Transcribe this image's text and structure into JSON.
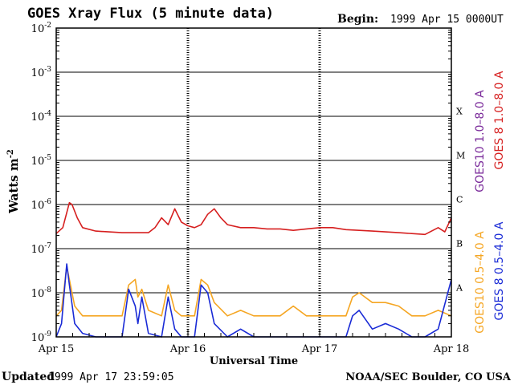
{
  "chart_data": {
    "type": "line",
    "title": "GOES Xray Flux (5 minute data)",
    "begin_label": "Begin:",
    "begin_value": "1999 Apr 15 0000UT",
    "xlabel": "Universal Time",
    "ylabel": "Watts m",
    "ylabel_sup": "-2",
    "y_scale": "log",
    "ylim": [
      1e-09,
      0.01
    ],
    "xlim_days": [
      0,
      3
    ],
    "x_ticks": [
      "Apr 15",
      "Apr 16",
      "Apr 17",
      "Apr 18"
    ],
    "y_ticks": [
      {
        "base": "10",
        "exp": "-9"
      },
      {
        "base": "10",
        "exp": "-8"
      },
      {
        "base": "10",
        "exp": "-7"
      },
      {
        "base": "10",
        "exp": "-6"
      },
      {
        "base": "10",
        "exp": "-5"
      },
      {
        "base": "10",
        "exp": "-4"
      },
      {
        "base": "10",
        "exp": "-3"
      },
      {
        "base": "10",
        "exp": "-2"
      }
    ],
    "flare_classes": [
      "A",
      "B",
      "C",
      "M",
      "X"
    ],
    "legend": [
      {
        "label": "GOES10 1.0–8.0 A",
        "color": "#7a2a9a"
      },
      {
        "label": "GOES 8 1.0–8.0 A",
        "color": "#d61f1f"
      },
      {
        "label": "GOES10 0.5–4.0 A",
        "color": "#f5a623"
      },
      {
        "label": "GOES 8 0.5–4.0 A",
        "color": "#1a2bd6"
      }
    ],
    "series": [
      {
        "name": "GOES 8 1.0–8.0 A",
        "color": "#d61f1f",
        "x": [
          0,
          0.05,
          0.1,
          0.12,
          0.16,
          0.2,
          0.3,
          0.4,
          0.5,
          0.6,
          0.7,
          0.75,
          0.8,
          0.85,
          0.9,
          0.95,
          1.0,
          1.05,
          1.1,
          1.15,
          1.2,
          1.25,
          1.3,
          1.4,
          1.5,
          1.6,
          1.7,
          1.8,
          1.9,
          2.0,
          2.1,
          2.2,
          2.3,
          2.4,
          2.5,
          2.6,
          2.7,
          2.8,
          2.9,
          2.95,
          3.0
        ],
        "values": [
          2.2e-07,
          3e-07,
          1.1e-06,
          1e-06,
          5e-07,
          3e-07,
          2.5e-07,
          2.4e-07,
          2.3e-07,
          2.3e-07,
          2.3e-07,
          3e-07,
          5e-07,
          3.5e-07,
          8e-07,
          4e-07,
          3.3e-07,
          3e-07,
          3.5e-07,
          6e-07,
          8e-07,
          5e-07,
          3.5e-07,
          3e-07,
          3e-07,
          2.8e-07,
          2.8e-07,
          2.6e-07,
          2.8e-07,
          3e-07,
          3e-07,
          2.7e-07,
          2.6e-07,
          2.5e-07,
          2.4e-07,
          2.3e-07,
          2.2e-07,
          2.1e-07,
          3e-07,
          2.4e-07,
          5e-07
        ]
      },
      {
        "name": "GOES10 0.5–4.0 A",
        "color": "#f5a623",
        "x": [
          0,
          0.04,
          0.08,
          0.1,
          0.14,
          0.2,
          0.3,
          0.4,
          0.5,
          0.55,
          0.6,
          0.62,
          0.65,
          0.7,
          0.8,
          0.85,
          0.9,
          0.95,
          1.0,
          1.05,
          1.1,
          1.15,
          1.2,
          1.3,
          1.4,
          1.5,
          1.6,
          1.7,
          1.8,
          1.9,
          2.0,
          2.1,
          2.2,
          2.25,
          2.3,
          2.4,
          2.5,
          2.6,
          2.7,
          2.8,
          2.9,
          3.0
        ],
        "values": [
          3e-09,
          4e-09,
          4e-08,
          2e-08,
          5e-09,
          3e-09,
          3e-09,
          3e-09,
          3e-09,
          1.5e-08,
          2e-08,
          8e-09,
          1.2e-08,
          4e-09,
          3e-09,
          1.5e-08,
          4e-09,
          3e-09,
          3e-09,
          3e-09,
          2e-08,
          1.5e-08,
          6e-09,
          3e-09,
          4e-09,
          3e-09,
          3e-09,
          3e-09,
          5e-09,
          3e-09,
          3e-09,
          3e-09,
          3e-09,
          8e-09,
          1e-08,
          6e-09,
          6e-09,
          5e-09,
          3e-09,
          3e-09,
          4e-09,
          3e-09
        ]
      },
      {
        "name": "GOES 8 0.5–4.0 A",
        "color": "#1a2bd6",
        "x": [
          0,
          0.04,
          0.08,
          0.1,
          0.14,
          0.2,
          0.3,
          0.4,
          0.5,
          0.55,
          0.6,
          0.62,
          0.65,
          0.7,
          0.8,
          0.85,
          0.9,
          0.95,
          1.0,
          1.05,
          1.1,
          1.15,
          1.2,
          1.3,
          1.4,
          1.5,
          1.6,
          1.7,
          1.8,
          1.9,
          2.0,
          2.1,
          2.2,
          2.25,
          2.3,
          2.4,
          2.5,
          2.6,
          2.7,
          2.8,
          2.9,
          3.0
        ],
        "values": [
          1e-09,
          2e-09,
          4.5e-08,
          1.5e-08,
          2e-09,
          1.2e-09,
          1e-09,
          1e-09,
          1e-09,
          1.2e-08,
          5e-09,
          2e-09,
          8e-09,
          1.2e-09,
          1e-09,
          8e-09,
          1.5e-09,
          1e-09,
          1e-09,
          1e-09,
          1.5e-08,
          1e-08,
          2e-09,
          1e-09,
          1.5e-09,
          1e-09,
          1e-09,
          1e-09,
          1e-09,
          1e-09,
          1e-09,
          1e-09,
          1e-09,
          3e-09,
          4e-09,
          1.5e-09,
          2e-09,
          1.5e-09,
          1e-09,
          1e-09,
          1.5e-09,
          2e-08
        ]
      }
    ]
  },
  "footer": {
    "updated_label": "Updated",
    "updated_value": "1999 Apr 17 23:59:05",
    "credit": "NOAA/SEC Boulder, CO USA"
  }
}
